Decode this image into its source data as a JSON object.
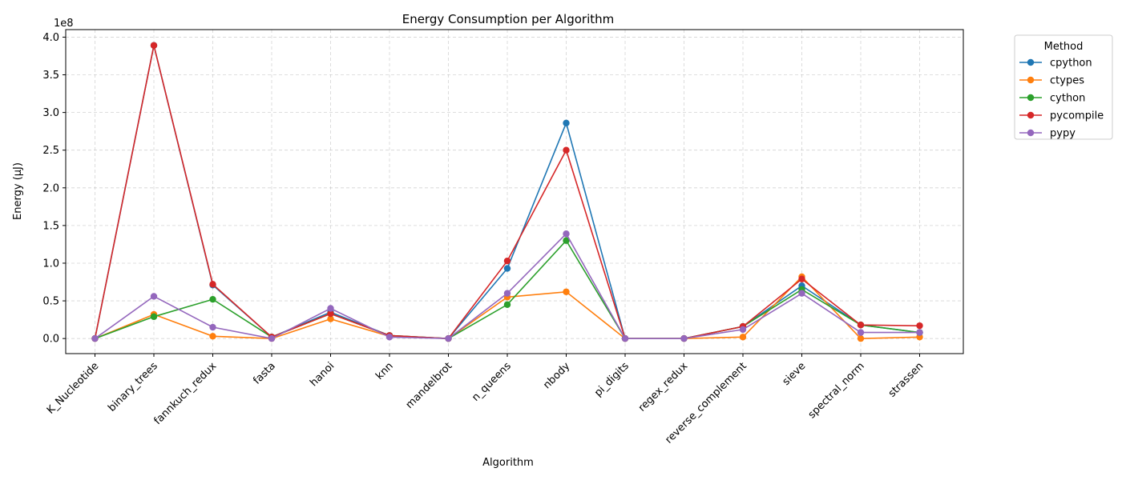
{
  "chart_data": {
    "type": "line",
    "title": "Energy Consumption per Algorithm",
    "xlabel": "Algorithm",
    "ylabel": "Energy (µJ)",
    "y_offset_label": "1e8",
    "y_scale": 100000000,
    "categories": [
      "K_Nucleotide",
      "binary_trees",
      "fannkuch_redux",
      "fasta",
      "hanoi",
      "knn",
      "mandelbrot",
      "n_queens",
      "nbody",
      "pi_digits",
      "regex_redux",
      "reverse_complement",
      "sieve",
      "spectral_norm",
      "strassen"
    ],
    "ylim": [
      -0.2,
      4.1
    ],
    "yticks": [
      0.0,
      0.5,
      1.0,
      1.5,
      2.0,
      2.5,
      3.0,
      3.5,
      4.0
    ],
    "ytick_labels": [
      "0.0",
      "0.5",
      "1.0",
      "1.5",
      "2.0",
      "2.5",
      "3.0",
      "3.5",
      "4.0"
    ],
    "grid": true,
    "legend": {
      "title": "Method",
      "placement": "outside-top-right"
    },
    "series": [
      {
        "name": "cpython",
        "color": "#1f77b4",
        "values": [
          0.0,
          3.89,
          0.71,
          0.02,
          0.35,
          0.04,
          0.0,
          0.93,
          2.86,
          0.0,
          0.0,
          0.16,
          0.7,
          0.18,
          0.08
        ]
      },
      {
        "name": "ctypes",
        "color": "#ff7f0e",
        "values": [
          0.0,
          0.32,
          0.03,
          0.0,
          0.26,
          0.03,
          0.0,
          0.55,
          0.62,
          0.0,
          0.0,
          0.02,
          0.82,
          0.0,
          0.02
        ]
      },
      {
        "name": "cython",
        "color": "#2ca02c",
        "values": [
          0.0,
          0.29,
          0.52,
          0.02,
          0.33,
          0.04,
          0.0,
          0.45,
          1.3,
          0.0,
          0.0,
          0.16,
          0.65,
          0.18,
          0.08
        ]
      },
      {
        "name": "pycompile",
        "color": "#d62728",
        "values": [
          0.0,
          3.89,
          0.72,
          0.02,
          0.33,
          0.04,
          0.0,
          1.03,
          2.5,
          0.0,
          0.0,
          0.16,
          0.79,
          0.18,
          0.17
        ]
      },
      {
        "name": "pypy",
        "color": "#9467bd",
        "values": [
          0.0,
          0.56,
          0.15,
          0.0,
          0.4,
          0.02,
          0.0,
          0.6,
          1.39,
          0.0,
          0.0,
          0.12,
          0.6,
          0.08,
          0.08
        ]
      }
    ]
  }
}
